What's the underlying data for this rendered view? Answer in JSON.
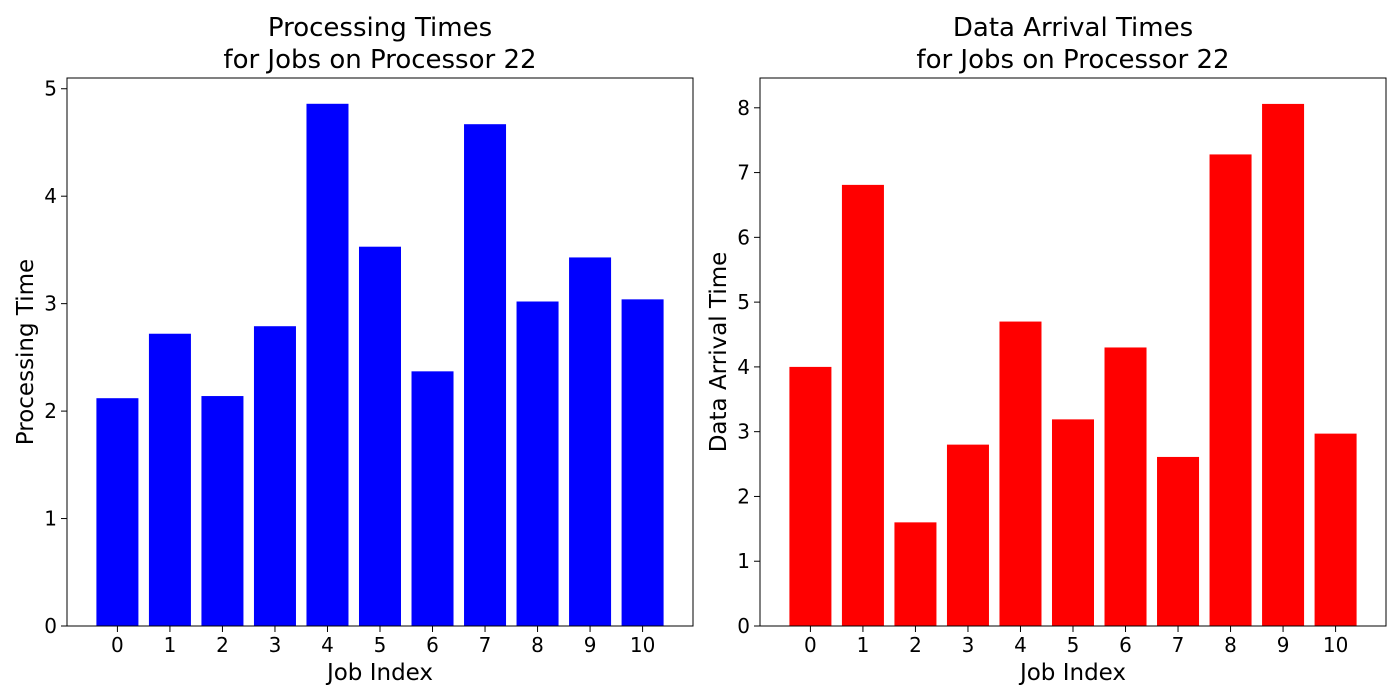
{
  "chart_data": [
    {
      "type": "bar",
      "title_line1": "Processing Times",
      "title_line2": "for Jobs on Processor 22",
      "xlabel": "Job Index",
      "ylabel": "Processing Time",
      "categories": [
        "0",
        "1",
        "2",
        "3",
        "4",
        "5",
        "6",
        "7",
        "8",
        "9",
        "10"
      ],
      "values": [
        2.12,
        2.72,
        2.14,
        2.79,
        4.86,
        3.53,
        2.37,
        4.67,
        3.02,
        3.43,
        3.04
      ],
      "ylim": [
        0,
        5.1
      ],
      "yticks": [
        0,
        1,
        2,
        3,
        4,
        5
      ],
      "color": "#0000ff"
    },
    {
      "type": "bar",
      "title_line1": "Data Arrival Times",
      "title_line2": "for Jobs on Processor 22",
      "xlabel": "Job Index",
      "ylabel": "Data Arrival Time",
      "categories": [
        "0",
        "1",
        "2",
        "3",
        "4",
        "5",
        "6",
        "7",
        "8",
        "9",
        "10"
      ],
      "values": [
        4.0,
        6.81,
        1.6,
        2.8,
        4.7,
        3.19,
        4.3,
        2.61,
        7.28,
        8.06,
        2.97
      ],
      "ylim": [
        0,
        8.46
      ],
      "yticks": [
        0,
        1,
        2,
        3,
        4,
        5,
        6,
        7,
        8
      ],
      "color": "#ff0000"
    }
  ]
}
